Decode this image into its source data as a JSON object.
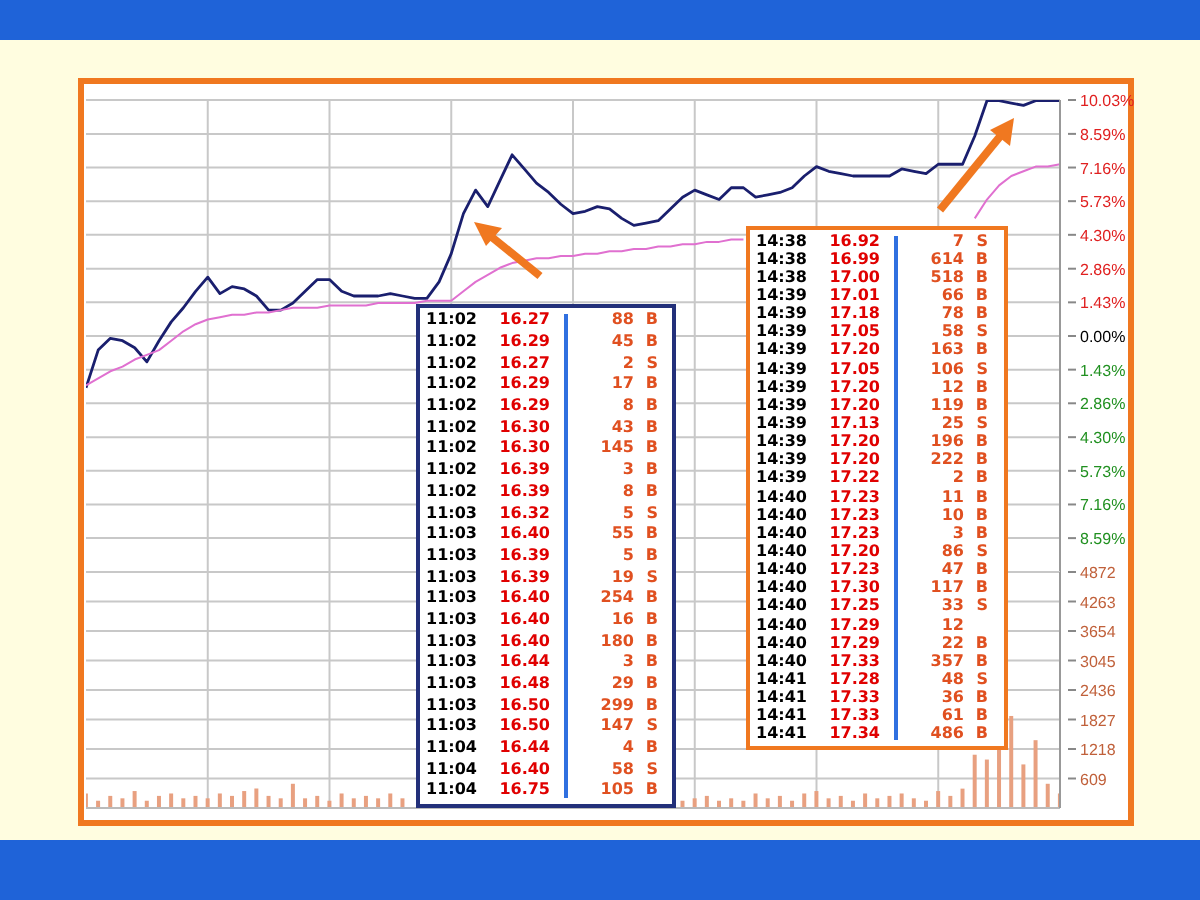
{
  "chart_data": [
    {
      "type": "line",
      "categories": [
        null,
        null,
        null,
        null,
        null,
        null,
        null,
        null,
        null,
        null,
        null,
        null,
        null,
        null,
        null,
        null,
        null,
        null,
        null,
        null,
        null,
        null,
        null,
        null,
        null,
        null,
        null,
        null,
        null,
        null,
        null,
        null,
        null,
        null,
        null,
        null,
        null,
        null,
        null,
        null,
        null,
        null,
        null,
        null,
        null,
        null,
        null,
        null,
        null,
        null,
        null,
        null,
        null,
        null,
        null,
        null,
        null,
        null,
        null,
        null,
        null,
        null,
        null,
        null,
        null,
        null,
        null,
        null,
        null,
        null,
        null,
        null,
        null,
        null,
        null,
        null,
        null,
        null,
        null,
        null,
        null
      ],
      "ylim": [
        -10.03,
        10.03
      ],
      "yticks": [
        {
          "value": 10.03,
          "label": "10.03%"
        },
        {
          "value": 8.59,
          "label": "8.59%"
        },
        {
          "value": 7.16,
          "label": "7.16%"
        },
        {
          "value": 5.73,
          "label": "5.73%"
        },
        {
          "value": 4.3,
          "label": "4.30%"
        },
        {
          "value": 2.86,
          "label": "2.86%"
        },
        {
          "value": 1.43,
          "label": "1.43%"
        },
        {
          "value": 0,
          "label": "0.00%"
        },
        {
          "value": -1.43,
          "label": "1.43%"
        },
        {
          "value": -2.86,
          "label": "2.86%"
        },
        {
          "value": -4.3,
          "label": "4.30%"
        },
        {
          "value": -5.73,
          "label": "5.73%"
        },
        {
          "value": -7.16,
          "label": "7.16%"
        },
        {
          "value": -8.59,
          "label": "8.59%"
        }
      ],
      "grid": true,
      "tick_labels": "y",
      "series": [
        {
          "color": "#1a1f6e",
          "values": [
            -2.2,
            -0.6,
            -0.1,
            -0.2,
            -0.5,
            -1.1,
            -0.2,
            0.6,
            1.2,
            1.9,
            2.5,
            1.8,
            2.1,
            2.0,
            1.7,
            1.1,
            1.1,
            1.4,
            1.9,
            2.4,
            2.4,
            1.9,
            1.7,
            1.7,
            1.7,
            1.8,
            1.7,
            1.6,
            1.6,
            2.3,
            3.5,
            5.2,
            6.2,
            5.5,
            6.6,
            7.7,
            7.1,
            6.5,
            6.1,
            5.6,
            5.2,
            5.3,
            5.5,
            5.4,
            5.0,
            4.7,
            4.8,
            4.9,
            5.4,
            5.9,
            6.2,
            6.0,
            5.8,
            6.3,
            6.3,
            5.9,
            6.0,
            6.1,
            6.3,
            6.8,
            7.2,
            7.0,
            6.9,
            6.8,
            6.8,
            6.8,
            6.8,
            7.1,
            7.0,
            6.9,
            7.3,
            7.3,
            7.3,
            8.5,
            10.0,
            10.0,
            9.9,
            9.8,
            10.0,
            10.0,
            10.0
          ]
        },
        {
          "color": "#e070d0",
          "values": [
            -2.1,
            -1.8,
            -1.5,
            -1.3,
            -1.0,
            -0.8,
            -0.6,
            -0.2,
            0.2,
            0.5,
            0.7,
            0.8,
            0.9,
            0.9,
            1.0,
            1.0,
            1.1,
            1.2,
            1.2,
            1.2,
            1.3,
            1.3,
            1.3,
            1.3,
            1.4,
            1.4,
            1.4,
            1.4,
            1.5,
            1.5,
            1.5,
            1.9,
            2.3,
            2.6,
            2.9,
            3.1,
            3.2,
            3.3,
            3.3,
            3.4,
            3.4,
            3.5,
            3.5,
            3.6,
            3.6,
            3.7,
            3.7,
            3.8,
            3.8,
            3.9,
            3.9,
            4.0,
            4.0,
            4.1,
            4.1,
            null,
            null,
            null,
            null,
            null,
            null,
            null,
            null,
            null,
            null,
            null,
            null,
            null,
            null,
            null,
            null,
            null,
            null,
            5.0,
            5.8,
            6.4,
            6.8,
            7.0,
            7.2,
            7.2,
            7.3
          ]
        }
      ],
      "annotations": [
        "11:02 16.27 88 B",
        "11:02 16.29 45 B",
        "11:02 16.27 2 S",
        "11:02 16.29 17 B",
        "11:02 16.29 8 B",
        "11:02 16.30 43 B",
        "11:02 16.30 145 B",
        "11:02 16.39 3 B",
        "11:02 16.39 8 B",
        "11:03 16.32 5 S",
        "11:03 16.40 55 B",
        "11:03 16.39 5 B",
        "11:03 16.39 19 S",
        "11:03 16.40 254 B",
        "11:03 16.40 16 B",
        "11:03 16.40 180 B",
        "11:03 16.44 3 B",
        "11:03 16.48 29 B",
        "11:03 16.50 299 B",
        "11:03 16.50 147 S",
        "11:04 16.44 4 B",
        "11:04 16.40 58 S",
        "11:04 16.75 105 B",
        "14:38 16.92 7 S",
        "14:38 16.99 614 B",
        "14:38 17.00 518 B",
        "14:39 17.01 66 B",
        "14:39 17.18 78 B",
        "14:39 17.05 58 S",
        "14:39 17.20 163 B",
        "14:39 17.05 106 S",
        "14:39 17.20 12 B",
        "14:39 17.20 119 B",
        "14:39 17.13 25 S",
        "14:39 17.20 196 B",
        "14:39 17.20 222 B",
        "14:39 17.22 2 B",
        "14:40 17.23 11 B",
        "14:40 17.23 10 B",
        "14:40 17.23 3 B",
        "14:40 17.20 86 S",
        "14:40 17.23 47 B",
        "14:40 17.30 117 B",
        "14:40 17.25 33 S",
        "14:40 17.29 12",
        "14:40 17.29 22 B",
        "14:40 17.33 357 B",
        "14:41 17.28 48 S",
        "14:41 17.33 36 B",
        "14:41 17.33 61 B",
        "14:41 17.34 486 B"
      ]
    },
    {
      "type": "bar",
      "color": "#e8a080",
      "categories": [
        null,
        null,
        null,
        null,
        null,
        null,
        null,
        null,
        null,
        null,
        null,
        null,
        null,
        null,
        null,
        null,
        null,
        null,
        null,
        null,
        null,
        null,
        null,
        null,
        null,
        null,
        null,
        null,
        null,
        null,
        null,
        null,
        null,
        null,
        null,
        null,
        null,
        null,
        null,
        null,
        null,
        null,
        null,
        null,
        null,
        null,
        null,
        null,
        null,
        null,
        null,
        null,
        null,
        null,
        null,
        null,
        null,
        null,
        null,
        null,
        null,
        null,
        null,
        null,
        null,
        null,
        null,
        null,
        null,
        null,
        null,
        null,
        null,
        null,
        null,
        null,
        null,
        null,
        null,
        null,
        null
      ],
      "ylim": [
        0,
        4872
      ],
      "yticks": [
        609,
        1218,
        1827,
        2436,
        3045,
        3654,
        4263,
        4872
      ],
      "grid": true,
      "tick_labels": "y",
      "values": [
        300,
        150,
        250,
        200,
        350,
        150,
        250,
        300,
        200,
        250,
        200,
        300,
        250,
        350,
        400,
        250,
        200,
        500,
        200,
        250,
        150,
        300,
        200,
        250,
        200,
        300,
        200,
        null,
        null,
        null,
        null,
        null,
        null,
        null,
        null,
        null,
        null,
        null,
        null,
        null,
        null,
        null,
        null,
        null,
        null,
        null,
        null,
        null,
        null,
        150,
        200,
        250,
        150,
        200,
        150,
        300,
        200,
        250,
        150,
        300,
        350,
        200,
        250,
        150,
        300,
        200,
        250,
        300,
        200,
        150,
        350,
        250,
        400,
        1100,
        1000,
        1200,
        1900,
        900,
        1400,
        500,
        300
      ]
    }
  ]
}
